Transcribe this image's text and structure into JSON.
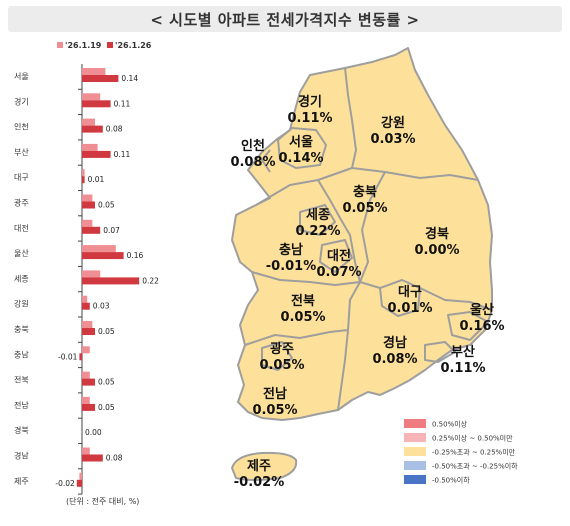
{
  "title": "< 시도별 아파트 전세가격지수 변동률 >",
  "unit_note": "(단위 : 전주 대비, %)",
  "colors": {
    "prev_week": "#f08f93",
    "this_week": "#d0393f",
    "map_fill": "#fde19a",
    "map_border": "#9e9e9e"
  },
  "chart_data": {
    "type": "bar",
    "orientation": "horizontal",
    "categories": [
      "서울",
      "경기",
      "인천",
      "부산",
      "대구",
      "광주",
      "대전",
      "울산",
      "세종",
      "강원",
      "충북",
      "충남",
      "전북",
      "전남",
      "경북",
      "경남",
      "제주"
    ],
    "series": [
      {
        "name": "'26.1.19",
        "values": [
          0.09,
          0.07,
          0.05,
          0.06,
          0.01,
          0.04,
          0.04,
          0.13,
          0.07,
          0.02,
          0.04,
          0.03,
          0.03,
          0.03,
          0.0,
          0.03,
          -0.01
        ]
      },
      {
        "name": "'26.1.26",
        "values": [
          0.14,
          0.11,
          0.08,
          0.11,
          0.01,
          0.05,
          0.07,
          0.16,
          0.22,
          0.03,
          0.05,
          -0.01,
          0.05,
          0.05,
          0.0,
          0.08,
          -0.02
        ]
      }
    ],
    "value_labels": [
      "0.14",
      "0.11",
      "0.08",
      "0.11",
      "0.01",
      "0.05",
      "0.07",
      "0.16",
      "0.22",
      "0.03",
      "0.05",
      "-0.01",
      "0.05",
      "0.05",
      "0.00",
      "0.08",
      "-0.02"
    ],
    "legend": [
      "'26.1.19",
      "'26.1.26"
    ],
    "legend_position": "top"
  },
  "map": {
    "regions": [
      {
        "name": "경기",
        "value": "0.11%"
      },
      {
        "name": "강원",
        "value": "0.03%"
      },
      {
        "name": "인천",
        "value": "0.08%"
      },
      {
        "name": "서울",
        "value": "0.14%"
      },
      {
        "name": "충북",
        "value": "0.05%"
      },
      {
        "name": "세종",
        "value": "0.22%"
      },
      {
        "name": "충남",
        "value": "-0.01%"
      },
      {
        "name": "대전",
        "value": "0.07%"
      },
      {
        "name": "경북",
        "value": "0.00%"
      },
      {
        "name": "대구",
        "value": "0.01%"
      },
      {
        "name": "울산",
        "value": "0.16%"
      },
      {
        "name": "전북",
        "value": "0.05%"
      },
      {
        "name": "광주",
        "value": "0.05%"
      },
      {
        "name": "경남",
        "value": "0.08%"
      },
      {
        "name": "부산",
        "value": "0.11%"
      },
      {
        "name": "전남",
        "value": "0.05%"
      },
      {
        "name": "제주",
        "value": "-0.02%"
      }
    ],
    "legend": [
      {
        "label": "0.50%이상",
        "color": "#ef7d80"
      },
      {
        "label": "0.25%이상 ~ 0.50%미만",
        "color": "#f7b4b6"
      },
      {
        "label": "-0.25%초과 ~ 0.25%미만",
        "color": "#fde19a"
      },
      {
        "label": "-0.50%초과 ~ -0.25%이하",
        "color": "#a9bfe3"
      },
      {
        "label": "-0.50%이하",
        "color": "#4a74c6"
      }
    ]
  }
}
